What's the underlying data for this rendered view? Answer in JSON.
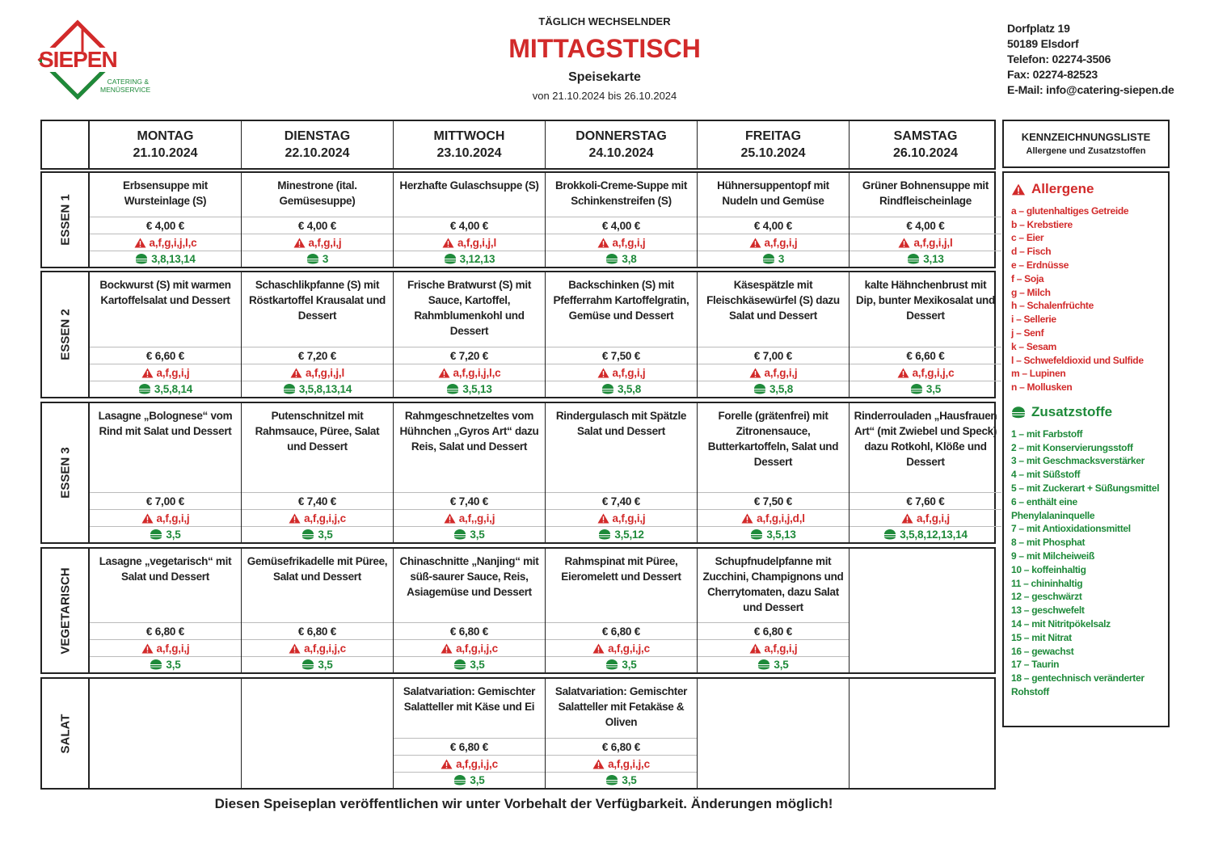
{
  "logo": {
    "name": "SIEPEN",
    "line1": "CATERING &",
    "line2": "MENÜSERVICE"
  },
  "header": {
    "kicker": "TÄGLICH WECHSELNDER",
    "title": "MITTAGSTISCH",
    "subtitle": "Speisekarte",
    "period": "von 21.10.2024 bis 26.10.2024"
  },
  "address": [
    "Dorfplatz 19",
    "50189 Elsdorf",
    "Telefon: 02274-3506",
    "Fax: 02274-82523",
    "E-Mail: info@catering-siepen.de"
  ],
  "days": [
    {
      "name": "MONTAG",
      "date": "21.10.2024"
    },
    {
      "name": "DIENSTAG",
      "date": "22.10.2024"
    },
    {
      "name": "MITTWOCH",
      "date": "23.10.2024"
    },
    {
      "name": "DONNERSTAG",
      "date": "24.10.2024"
    },
    {
      "name": "FREITAG",
      "date": "25.10.2024"
    },
    {
      "name": "SAMSTAG",
      "date": "26.10.2024"
    }
  ],
  "rows": [
    {
      "label": "ESSEN 1",
      "cells": [
        {
          "dish": "Erbsensuppe mit Wursteinlage (S)",
          "price": "€ 4,00 €",
          "allergens": "a,f,g,i,j,l,c",
          "additives": "3,8,13,14"
        },
        {
          "dish": "Minestrone (ital. Gemüsesuppe)",
          "price": "€ 4,00 €",
          "allergens": "a,f,g,i,j",
          "additives": "3"
        },
        {
          "dish": "Herzhafte Gulaschsuppe (S)",
          "price": "€ 4,00 €",
          "allergens": "a,f,g,i,j,l",
          "additives": "3,12,13"
        },
        {
          "dish": "Brokkoli-Creme-Suppe mit Schinkenstreifen (S)",
          "price": "€ 4,00 €",
          "allergens": "a,f,g,i,j",
          "additives": "3,8"
        },
        {
          "dish": "Hühnersuppentopf mit Nudeln und Gemüse",
          "price": "€ 4,00 €",
          "allergens": "a,f,g,i,j",
          "additives": "3"
        },
        {
          "dish": "Grüner Bohnensuppe mit Rindfleischeinlage",
          "price": "€ 4,00 €",
          "allergens": "a,f,g,i,j,l",
          "additives": "3,13"
        }
      ]
    },
    {
      "label": "ESSEN 2",
      "cells": [
        {
          "dish": "Bockwurst (S) mit warmen Kartoffelsalat und Dessert",
          "price": "€ 6,60 €",
          "allergens": "a,f,g,i,j",
          "additives": "3,5,8,14"
        },
        {
          "dish": "Schaschlikpfanne (S) mit Röstkartoffel Krausalat und Dessert",
          "price": "€ 7,20 €",
          "allergens": "a,f,g,i,j,l",
          "additives": "3,5,8,13,14"
        },
        {
          "dish": "Frische Bratwurst (S) mit Sauce, Kartoffel, Rahmblumenkohl und Dessert",
          "price": "€ 7,20 €",
          "allergens": "a,f,g,i,j,l,c",
          "additives": "3,5,13"
        },
        {
          "dish": "Backschinken (S) mit Pfefferrahm Kartoffelgratin, Gemüse und Dessert",
          "price": "€ 7,50 €",
          "allergens": "a,f,g,i,j",
          "additives": "3,5,8"
        },
        {
          "dish": "Käsespätzle mit Fleischkäsewürfel (S) dazu Salat und Dessert",
          "price": "€ 7,00 €",
          "allergens": "a,f,g,i,j",
          "additives": "3,5,8"
        },
        {
          "dish": "kalte Hähnchenbrust mit Dip, bunter Mexikosalat und Dessert",
          "price": "€ 6,60 €",
          "allergens": "a,f,g,i,j,c",
          "additives": "3,5"
        }
      ]
    },
    {
      "label": "ESSEN 3",
      "cells": [
        {
          "dish": "Lasagne „Bolognese“ vom Rind mit Salat und Dessert",
          "price": "€ 7,00 €",
          "allergens": "a,f,g,i,j",
          "additives": "3,5"
        },
        {
          "dish": "Putenschnitzel mit Rahmsauce, Püree, Salat und Dessert",
          "price": "€ 7,40 €",
          "allergens": "a,f,g,i,j,c",
          "additives": "3,5"
        },
        {
          "dish": "Rahmgeschnetzeltes vom Hühnchen „Gyros Art“ dazu Reis, Salat und Dessert",
          "price": "€ 7,40 €",
          "allergens": "a,f,,g,i,j",
          "additives": "3,5"
        },
        {
          "dish": "Rindergulasch mit Spätzle Salat und Dessert",
          "price": "€ 7,40 €",
          "allergens": "a,f,g,i,j",
          "additives": "3,5,12"
        },
        {
          "dish": "Forelle (grätenfrei) mit Zitronensauce, Butterkartoffeln, Salat und Dessert",
          "price": "€ 7,50 €",
          "allergens": "a,f,g,i,j,d,l",
          "additives": "3,5,13"
        },
        {
          "dish": "Rinderrouladen „Hausfrauen Art“ (mit Zwiebel und Speck) dazu Rotkohl, Klöße und Dessert",
          "price": "€ 7,60 €",
          "allergens": "a,f,g,i,j",
          "additives": "3,5,8,12,13,14"
        }
      ]
    },
    {
      "label": "VEGETARISCH",
      "cells": [
        {
          "dish": "Lasagne „vegetarisch“ mit Salat und Dessert",
          "price": "€ 6,80 €",
          "allergens": "a,f,g,i,j",
          "additives": "3,5"
        },
        {
          "dish": "Gemüsefrikadelle mit Püree, Salat und Dessert",
          "price": "€ 6,80 €",
          "allergens": "a,f,g,i,j,c",
          "additives": "3,5"
        },
        {
          "dish": "Chinaschnitte „Nanjing“ mit süß-saurer Sauce, Reis, Asiagemüse und Dessert",
          "price": "€ 6,80 €",
          "allergens": "a,f,g,i,j,c",
          "additives": "3,5"
        },
        {
          "dish": "Rahmspinat mit Püree, Eieromelett und Dessert",
          "price": "€ 6,80 €",
          "allergens": "a,f,g,i,j,c",
          "additives": "3,5"
        },
        {
          "dish": "Schupfnudelpfanne mit Zucchini, Champignons und Cherrytomaten, dazu Salat und Dessert",
          "price": "€ 6,80 €",
          "allergens": "a,f,g,i,j",
          "additives": "3,5"
        },
        null
      ]
    },
    {
      "label": "SALAT",
      "cells": [
        null,
        null,
        {
          "dish": "Salatvariation: Gemischter Salatteller mit Käse und Ei",
          "price": "€ 6,80 €",
          "allergens": "a,f,g,i,j,c",
          "additives": "3,5"
        },
        {
          "dish": "Salatvariation: Gemischter Salatteller mit Fetakäse & Oliven",
          "price": "€ 6,80 €",
          "allergens": "a,f,g,i,j,c",
          "additives": "3,5"
        },
        null,
        null
      ]
    }
  ],
  "legend": {
    "title": "KENNZEICHNUNGSLISTE",
    "subtitle": "Allergene und Zusatzstoffen",
    "allergens": {
      "title": "Allergene",
      "items": [
        "a – glutenhaltiges Getreide",
        "b – Krebstiere",
        "c – Eier",
        "d – Fisch",
        "e – Erdnüsse",
        "f – Soja",
        "g – Milch",
        "h – Schalenfrüchte",
        "i – Sellerie",
        "j – Senf",
        "k – Sesam",
        "l – Schwefeldioxid und Sulfide",
        "m – Lupinen",
        "n – Mollusken"
      ]
    },
    "additives": {
      "title": "Zusatzstoffe",
      "items": [
        "1 – mit Farbstoff",
        "2 – mit Konservierungsstoff",
        "3 – mit Geschmacksverstärker",
        "4 – mit Süßstoff",
        "5 – mit Zuckerart + Süßungsmittel",
        "6 – enthält eine Phenylalaninquelle",
        "7 – mit Antioxidationsmittel",
        "8 – mit Phosphat",
        "9 – mit Milcheiweiß",
        "10 – koffeinhaltig",
        "11 – chininhaltig",
        "12 – geschwärzt",
        "13 – geschwefelt",
        "14 – mit Nitritpökelsalz",
        "15 – mit Nitrat",
        "16 – gewachst",
        "17 – Taurin",
        "18 – gentechnisch veränderter Rohstoff"
      ]
    }
  },
  "footer": "Diesen Speiseplan veröffentlichen wir unter Vorbehalt der Verfügbarkeit. Änderungen möglich!"
}
